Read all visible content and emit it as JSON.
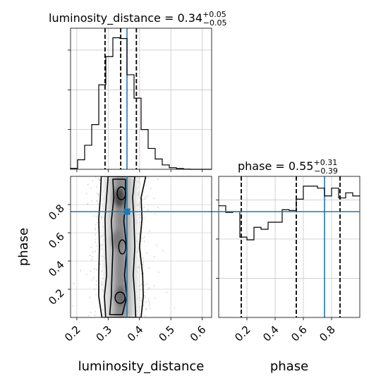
{
  "chart_data": {
    "type": "corner",
    "parameters": [
      "luminosity_distance",
      "phase"
    ],
    "truth": {
      "luminosity_distance": 0.36,
      "phase": 0.75
    },
    "accent_color": "#1f77b4",
    "grid": true,
    "panels": [
      {
        "id": "hist-luminosity-distance",
        "type": "histogram",
        "parameter": "luminosity_distance",
        "title": {
          "lead": "luminosity_distance = 0.34",
          "sup": "+0.05",
          "sub": "−0.05"
        },
        "xlim": [
          0.18,
          0.63
        ],
        "bin_edges": [
          0.18,
          0.2025,
          0.225,
          0.2475,
          0.27,
          0.2925,
          0.315,
          0.3375,
          0.36,
          0.3825,
          0.405,
          0.4275,
          0.45,
          0.4725,
          0.495,
          0.5175,
          0.54,
          0.5625,
          0.585,
          0.6075,
          0.63
        ],
        "counts": [
          0.005,
          0.048,
          0.121,
          0.225,
          0.425,
          0.567,
          0.662,
          0.658,
          0.476,
          0.358,
          0.2,
          0.105,
          0.052,
          0.022,
          0.008,
          0.004,
          0.001,
          0,
          0,
          0
        ],
        "ylim": [
          0,
          0.71
        ],
        "quantiles": [
          0.29,
          0.34,
          0.39
        ]
      },
      {
        "id": "hist-phase",
        "type": "histogram",
        "parameter": "phase",
        "title": {
          "lead": "phase = 0.55",
          "sup": "+0.31",
          "sub": "−0.39"
        },
        "xlim": [
          0.0,
          1.0
        ],
        "bin_edges": [
          0.0,
          0.05,
          0.1,
          0.15,
          0.2,
          0.25,
          0.3,
          0.35,
          0.4,
          0.45,
          0.5,
          0.55,
          0.6,
          0.65,
          0.7,
          0.75,
          0.8,
          0.85,
          0.9,
          0.95,
          1.0
        ],
        "counts": [
          0.285,
          0.268,
          0.27,
          0.205,
          0.198,
          0.23,
          0.225,
          0.243,
          0.243,
          0.275,
          0.273,
          0.302,
          0.335,
          0.335,
          0.33,
          0.31,
          0.33,
          0.305,
          0.318,
          0.31
        ],
        "ylim": [
          0,
          0.36
        ],
        "quantiles": [
          0.16,
          0.55,
          0.86
        ]
      },
      {
        "id": "joint-phase-vs-luminosity-distance",
        "type": "2d-density",
        "x": "luminosity_distance",
        "y": "phase",
        "xlim": [
          0.18,
          0.63
        ],
        "ylim": [
          0.0,
          1.0
        ],
        "contour_levels": [
          {
            "left": [
              [
                0.28,
                0.0
              ],
              [
                0.27,
                0.15
              ],
              [
                0.27,
                0.3
              ],
              [
                0.272,
                0.5
              ],
              [
                0.27,
                0.7
              ],
              [
                0.275,
                0.85
              ],
              [
                0.278,
                1.0
              ]
            ],
            "right": [
              [
                0.42,
                1.0
              ],
              [
                0.405,
                0.85
              ],
              [
                0.408,
                0.7
              ],
              [
                0.4,
                0.5
              ],
              [
                0.41,
                0.3
              ],
              [
                0.412,
                0.15
              ],
              [
                0.405,
                0.0
              ]
            ]
          },
          {
            "left": [
              [
                0.292,
                0.0
              ],
              [
                0.288,
                0.15
              ],
              [
                0.295,
                0.3
              ],
              [
                0.292,
                0.5
              ],
              [
                0.29,
                0.7
              ],
              [
                0.295,
                0.85
              ],
              [
                0.3,
                1.0
              ]
            ],
            "right": [
              [
                0.385,
                1.0
              ],
              [
                0.378,
                0.85
              ],
              [
                0.382,
                0.7
              ],
              [
                0.385,
                0.5
              ],
              [
                0.38,
                0.3
              ],
              [
                0.385,
                0.15
              ],
              [
                0.388,
                0.0
              ]
            ]
          },
          {
            "left": [
              [
                0.305,
                0.02
              ],
              [
                0.31,
                0.15
              ],
              [
                0.312,
                0.3
              ],
              [
                0.315,
                0.48
              ],
              [
                0.31,
                0.68
              ],
              [
                0.318,
                0.85
              ],
              [
                0.315,
                0.98
              ]
            ],
            "right": [
              [
                0.355,
                0.98
              ],
              [
                0.355,
                0.85
              ],
              [
                0.35,
                0.68
              ],
              [
                0.36,
                0.48
              ],
              [
                0.352,
                0.3
              ],
              [
                0.36,
                0.15
              ],
              [
                0.345,
                0.02
              ]
            ]
          }
        ]
      }
    ]
  }
}
